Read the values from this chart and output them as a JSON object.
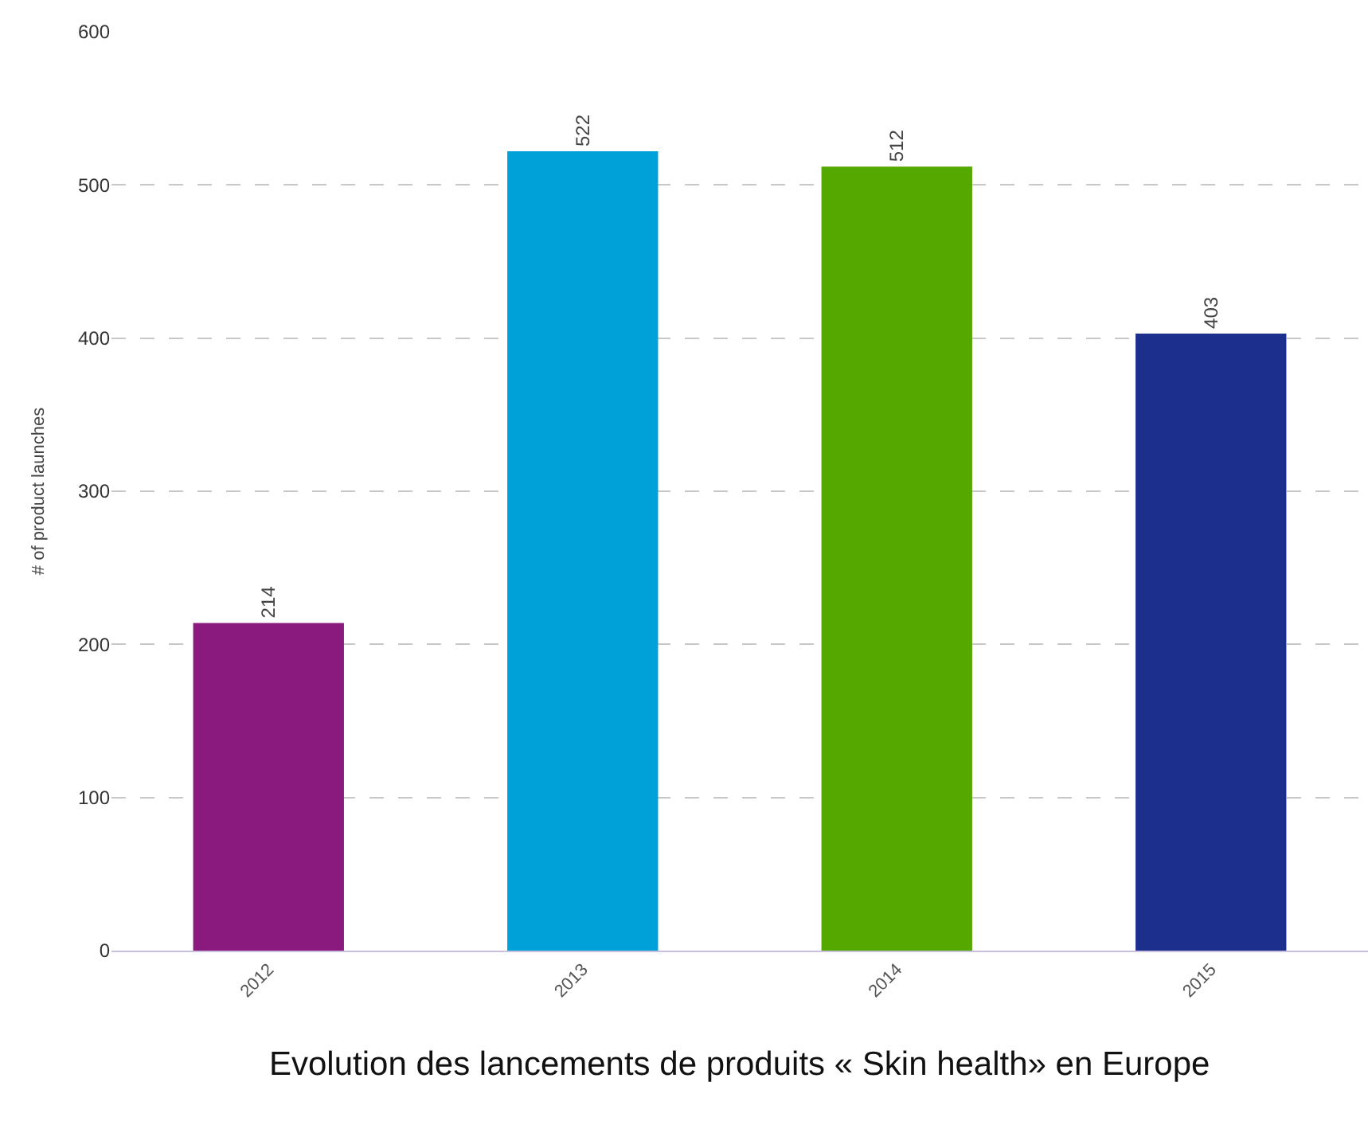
{
  "chart_data": {
    "type": "bar",
    "ylabel": "# of product launches",
    "categories": [
      "2012",
      "2013",
      "2014",
      "2015"
    ],
    "values": [
      214,
      522,
      512,
      403
    ],
    "colors": [
      "#8b1a7e",
      "#00a1d8",
      "#55a800",
      "#1d2f8c"
    ],
    "ylim": [
      0,
      600
    ],
    "yticks": [
      0,
      100,
      200,
      300,
      400,
      500,
      600
    ],
    "grid": "y",
    "data_labels": true,
    "annotations": [
      "Evolution des lancements de produits « Skin health» en Europe"
    ]
  }
}
